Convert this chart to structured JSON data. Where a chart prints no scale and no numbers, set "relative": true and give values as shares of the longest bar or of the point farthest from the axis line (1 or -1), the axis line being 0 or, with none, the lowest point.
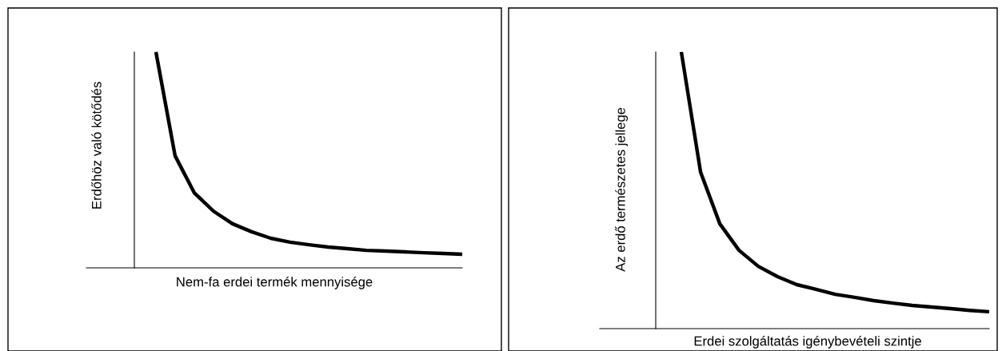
{
  "chart_data": [
    {
      "type": "line",
      "relative": true,
      "xlabel": "Nem-fa erdei termék mennyisége",
      "ylabel": "Erdőhöz való kötődés",
      "categories": [
        null,
        null,
        null,
        null,
        null,
        null,
        null,
        null,
        null,
        null,
        null,
        null,
        null,
        null,
        null,
        null,
        null
      ],
      "series": [
        {
          "color": "#000000",
          "values": [
            1.0,
            0.519,
            0.348,
            0.263,
            0.204,
            0.167,
            0.137,
            0.119,
            0.107,
            0.096,
            0.089,
            0.081,
            0.078,
            0.074,
            0.07,
            0.067,
            0.063
          ]
        }
      ]
    },
    {
      "type": "line",
      "relative": true,
      "xlabel": "Erdei szolgáltatás igénybevételi szintje",
      "ylabel": "Az erdő természetes jellege",
      "categories": [
        null,
        null,
        null,
        null,
        null,
        null,
        null,
        null,
        null,
        null,
        null,
        null,
        null,
        null,
        null,
        null,
        null
      ],
      "series": [
        {
          "color": "#000000",
          "values": [
            1.0,
            0.566,
            0.379,
            0.283,
            0.225,
            0.188,
            0.159,
            0.142,
            0.124,
            0.113,
            0.101,
            0.092,
            0.084,
            0.078,
            0.072,
            0.066,
            0.061
          ]
        }
      ]
    }
  ]
}
